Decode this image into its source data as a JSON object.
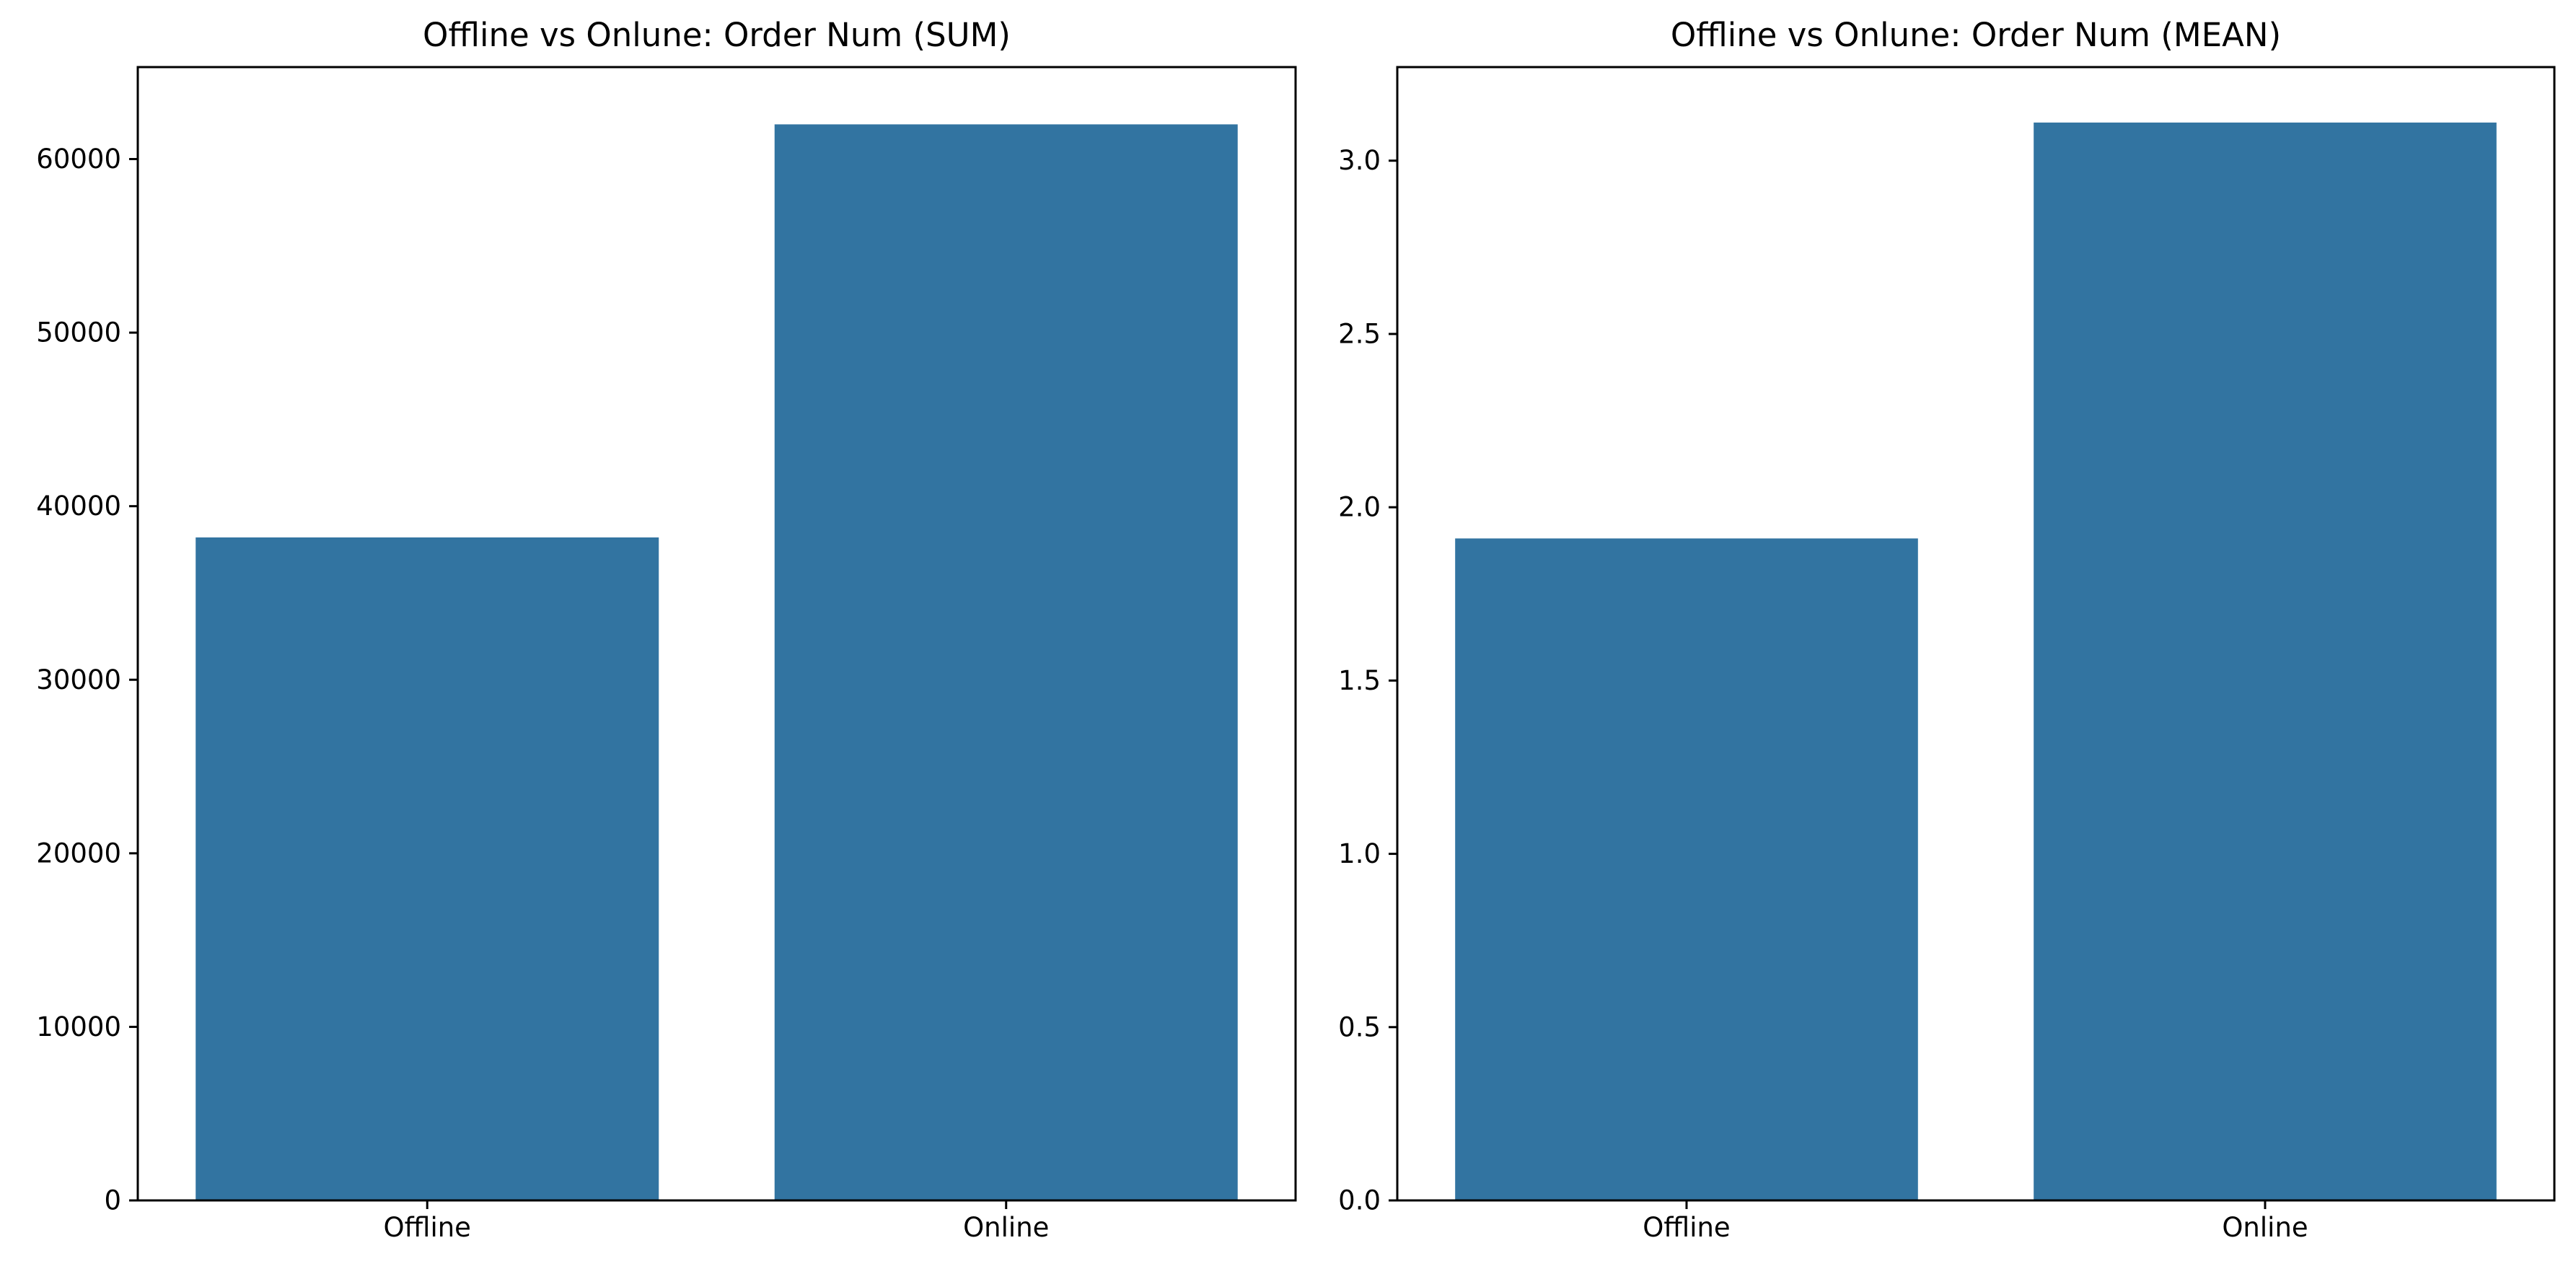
{
  "chart_data": [
    {
      "type": "bar",
      "title": "Offline vs Onlune: Order Num (SUM)",
      "categories": [
        "Offline",
        "Online"
      ],
      "values": [
        38200,
        62000
      ],
      "ylim": [
        0,
        65300
      ],
      "yticks": [
        0,
        10000,
        20000,
        30000,
        40000,
        50000,
        60000
      ],
      "ytick_labels": [
        "0",
        "10000",
        "20000",
        "30000",
        "40000",
        "50000",
        "60000"
      ],
      "xlabel": "",
      "ylabel": "",
      "grid": false,
      "bar_color": "#3274a1"
    },
    {
      "type": "bar",
      "title": "Offline vs Onlune: Order Num (MEAN)",
      "categories": [
        "Offline",
        "Online"
      ],
      "values": [
        1.91,
        3.11
      ],
      "ylim": [
        0,
        3.27
      ],
      "yticks": [
        0.0,
        0.5,
        1.0,
        1.5,
        2.0,
        2.5,
        3.0
      ],
      "ytick_labels": [
        "0.0",
        "0.5",
        "1.0",
        "1.5",
        "2.0",
        "2.5",
        "3.0"
      ],
      "xlabel": "",
      "ylabel": "",
      "grid": false,
      "bar_color": "#3274a1"
    }
  ]
}
